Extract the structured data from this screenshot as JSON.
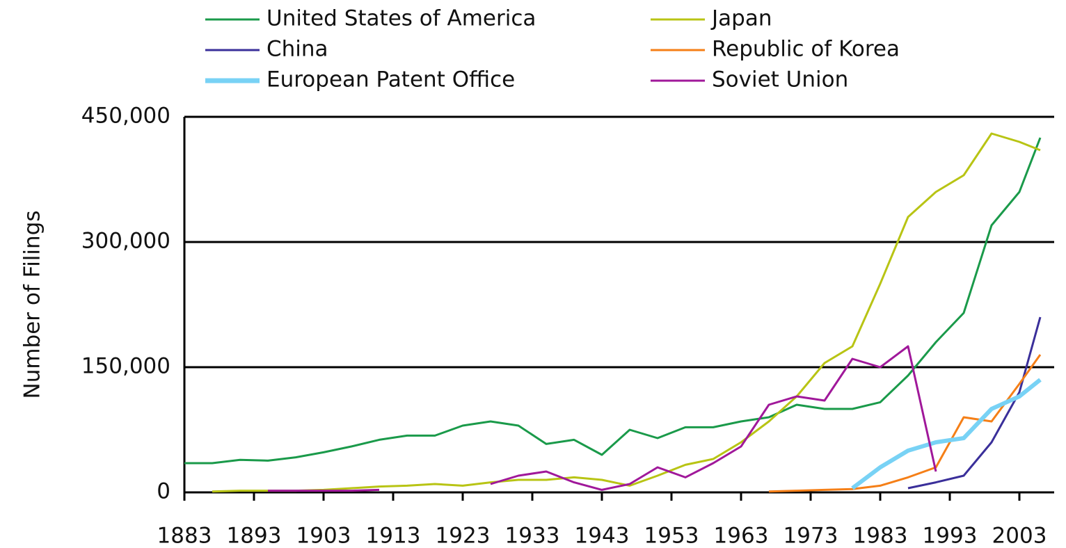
{
  "chart_data": {
    "type": "line",
    "y_label": "Number of Filings",
    "x": [
      1883,
      1887,
      1891,
      1895,
      1899,
      1903,
      1907,
      1911,
      1915,
      1919,
      1923,
      1927,
      1931,
      1935,
      1939,
      1943,
      1947,
      1951,
      1955,
      1959,
      1963,
      1967,
      1971,
      1975,
      1979,
      1983,
      1987,
      1991,
      1995,
      1999,
      2003,
      2006
    ],
    "xlim": [
      1883,
      2008
    ],
    "xticks": [
      1883,
      1893,
      1903,
      1913,
      1923,
      1933,
      1943,
      1953,
      1963,
      1973,
      1983,
      1993,
      2003
    ],
    "ylim": [
      0,
      450000
    ],
    "yticks": [
      0,
      {
        "value": 150000,
        "label": "150,000"
      },
      {
        "value": 300000,
        "label": "300,000"
      },
      {
        "value": 450000,
        "label": "450,000"
      }
    ],
    "grid": true,
    "legend": "top",
    "series": [
      {
        "name": "United States of America",
        "color": "#1a9a4a",
        "values": [
          35000,
          35000,
          39000,
          38000,
          42000,
          48000,
          55000,
          63000,
          68000,
          68000,
          80000,
          85000,
          80000,
          58000,
          63000,
          45000,
          75000,
          65000,
          78000,
          78000,
          85000,
          90000,
          105000,
          100000,
          100000,
          108000,
          140000,
          180000,
          215000,
          320000,
          360000,
          425000
        ]
      },
      {
        "name": "Japan",
        "color": "#b8c414",
        "values": [
          null,
          1000,
          2000,
          2000,
          2000,
          3000,
          5000,
          7000,
          8000,
          10000,
          8000,
          12000,
          15000,
          15000,
          18000,
          15000,
          8000,
          20000,
          33000,
          40000,
          60000,
          85000,
          115000,
          155000,
          175000,
          250000,
          330000,
          360000,
          380000,
          430000,
          420000,
          410000
        ]
      },
      {
        "name": "China",
        "color": "#3a2f9a",
        "values": [
          null,
          null,
          null,
          null,
          null,
          null,
          null,
          null,
          null,
          null,
          null,
          null,
          null,
          null,
          null,
          null,
          null,
          null,
          null,
          null,
          null,
          null,
          null,
          null,
          null,
          null,
          5000,
          12000,
          20000,
          60000,
          120000,
          210000
        ]
      },
      {
        "name": "Republic of Korea",
        "color": "#f57f17",
        "values": [
          null,
          null,
          null,
          null,
          null,
          null,
          null,
          null,
          null,
          null,
          null,
          null,
          null,
          null,
          null,
          null,
          null,
          null,
          null,
          null,
          null,
          1000,
          2000,
          3000,
          4000,
          8000,
          18000,
          30000,
          90000,
          85000,
          130000,
          165000
        ]
      },
      {
        "name": "European Patent Office",
        "color": "#78d2f5",
        "values": [
          null,
          null,
          null,
          null,
          null,
          null,
          null,
          null,
          null,
          null,
          null,
          null,
          null,
          null,
          null,
          null,
          null,
          null,
          null,
          null,
          null,
          null,
          null,
          null,
          5000,
          30000,
          50000,
          60000,
          65000,
          100000,
          115000,
          135000
        ]
      },
      {
        "name": "Soviet Union",
        "color": "#a0189a",
        "values": [
          null,
          null,
          null,
          2000,
          2000,
          2000,
          2000,
          3000,
          null,
          null,
          null,
          10000,
          20000,
          25000,
          12000,
          3000,
          10000,
          30000,
          18000,
          35000,
          55000,
          105000,
          115000,
          110000,
          160000,
          150000,
          175000,
          25000,
          null,
          null,
          null,
          null
        ]
      }
    ]
  }
}
